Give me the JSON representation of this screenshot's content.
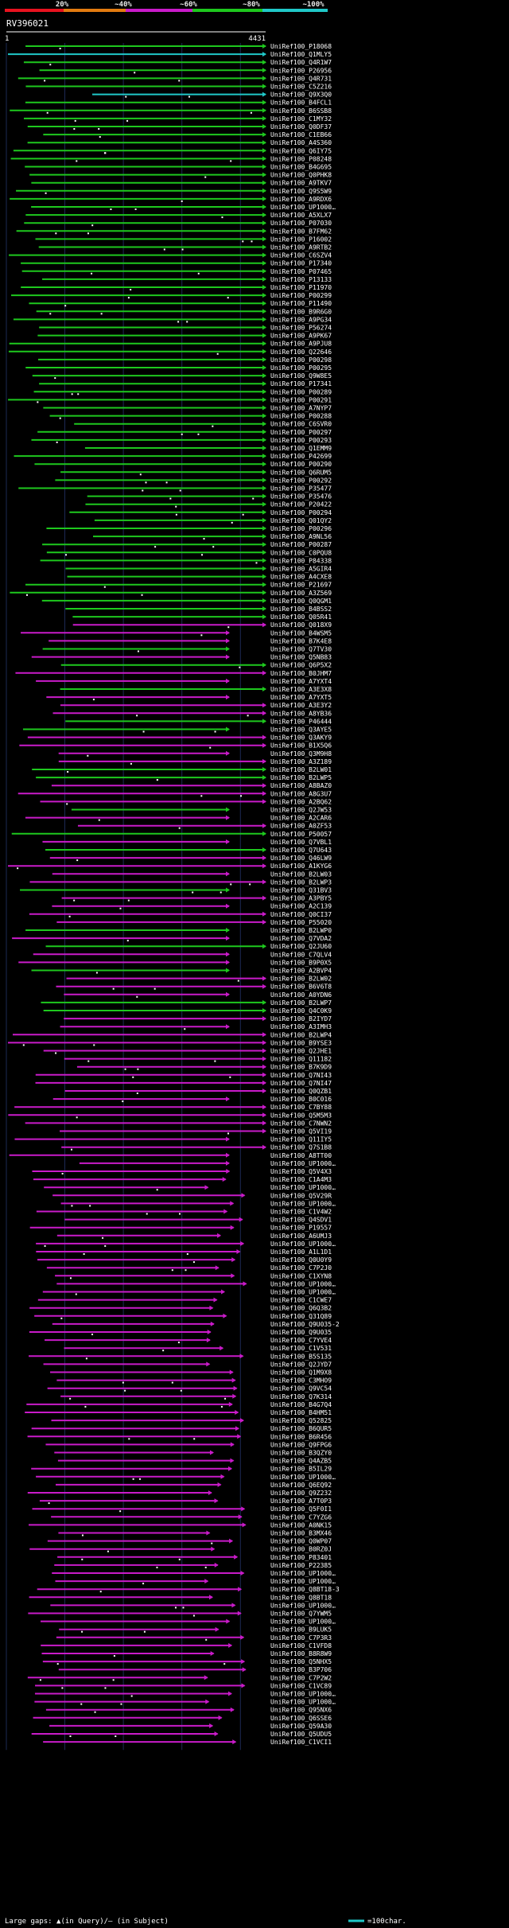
{
  "title": "RV396021",
  "legend_labels": [
    "20%",
    "~40%",
    "~60%",
    "~80%",
    "~100%"
  ],
  "legend_colors": [
    "#e8121f",
    "#e27b10",
    "#c91bc9",
    "#1ec81e",
    "#20c8c8"
  ],
  "footer": {
    "gap_note": "Large gaps: ▲(in Query)/— (in Subject)",
    "scale_note": "=100char."
  },
  "chart_data": {
    "type": "alignment",
    "query_id": "RV396021",
    "query_start": 1,
    "query_end": 4431,
    "axis_start_label": "1",
    "axis_end_label": "4431",
    "hits": [
      "UniRef100_P18068",
      "UniRef100_Q1MLY5",
      "UniRef100_Q4R1W7",
      "UniRef100_P26956",
      "UniRef100_Q4R731",
      "UniRef100_C5Z216",
      "UniRef100_Q9X3Q0",
      "UniRef100_B4FCL1",
      "UniRef100_B6SSB8",
      "UniRef100_C1MY32",
      "UniRef100_Q0DF37",
      "UniRef100_C1EB66",
      "UniRef100_A4S360",
      "UniRef100_Q6IY75",
      "UniRef100_P08248",
      "UniRef100_B4G695",
      "UniRef100_Q0PHK8",
      "UniRef100_A9TKV7",
      "UniRef100_Q9S5W9",
      "UniRef100_A9RDX6",
      "UniRef100_UP1000…",
      "UniRef100_A5XLX7",
      "UniRef100_P07030",
      "UniRef100_B7FM62",
      "UniRef100_P16002",
      "UniRef100_A9RTB2",
      "UniRef100_C6SZV4",
      "UniRef100_P17340",
      "UniRef100_P07465",
      "UniRef100_P13133",
      "UniRef100_P11970",
      "UniRef100_P00299",
      "UniRef100_P11490",
      "UniRef100_B9R6G0",
      "UniRef100_A9PG34",
      "UniRef100_P56274",
      "UniRef100_A9PK67",
      "UniRef100_A9PJU8",
      "UniRef100_Q22646",
      "UniRef100_P00298",
      "UniRef100_P00295",
      "UniRef100_Q9W8E5",
      "UniRef100_P17341",
      "UniRef100_P00289",
      "UniRef100_P00291",
      "UniRef100_A7NYP7",
      "UniRef100_P00288",
      "UniRef100_C6SVR0",
      "UniRef100_P00297",
      "UniRef100_P00293",
      "UniRef100_Q1EMM9",
      "UniRef100_P42699",
      "UniRef100_P00290",
      "UniRef100_Q6RUM5",
      "UniRef100_P00292",
      "UniRef100_P35477",
      "UniRef100_P35476",
      "UniRef100_P20422",
      "UniRef100_P00294",
      "UniRef100_Q01QY2",
      "UniRef100_P00296",
      "UniRef100_A9NL56",
      "UniRef100_P00287",
      "UniRef100_C0PQU8",
      "UniRef100_P84338",
      "UniRef100_A5GIR4",
      "UniRef100_A4CXE8",
      "UniRef100_P21697",
      "UniRef100_A3Z569",
      "UniRef100_Q0QGM1",
      "UniRef100_B4BSS2",
      "UniRef100_Q05R41",
      "UniRef100_Q018X9",
      "UniRef100_B4WSM5",
      "UniRef100_B7K4E8",
      "UniRef100_Q7TV30",
      "UniRef100_Q5NB83",
      "UniRef100_Q6P5X2",
      "UniRef100_B0JHM7",
      "UniRef100_A7YXT4",
      "UniRef100_A3E3X8",
      "UniRef100_A7YXT5",
      "UniRef100_A3E3Y2",
      "UniRef100_A8YB36",
      "UniRef100_P46444",
      "UniRef100_Q3AYE5",
      "UniRef100_Q3AKY9",
      "UniRef100_B1X5Q6",
      "UniRef100_Q3M9H8",
      "UniRef100_A3Z189",
      "UniRef100_B2LW01",
      "UniRef100_B2LWP5",
      "UniRef100_A8BAZ0",
      "UniRef100_A8G3U7",
      "UniRef100_A2BQ62",
      "UniRef100_Q2JW53",
      "UniRef100_A2CAR6",
      "UniRef100_A0ZF53",
      "UniRef100_P50057",
      "UniRef100_Q7VBL1",
      "UniRef100_Q7U643",
      "UniRef100_Q46LW9",
      "UniRef100_A1KYG6",
      "UniRef100_B2LW03",
      "UniRef100_B2LWP3",
      "UniRef100_Q31BV3",
      "UniRef100_A3PBY5",
      "UniRef100_A2C139",
      "UniRef100_Q0CI37",
      "UniRef100_P55020",
      "UniRef100_B2LWP0",
      "UniRef100_Q7VDA2",
      "UniRef100_Q2JU60",
      "UniRef100_C7QLV4",
      "UniRef100_B9P0X5",
      "UniRef100_A2BVP4",
      "UniRef100_B2LW02",
      "UniRef100_B6V6T8",
      "UniRef100_A0YDN6",
      "UniRef100_B2LWP7",
      "UniRef100_Q4C0K9",
      "UniRef100_B2IYD7",
      "UniRef100_A3IMH3",
      "UniRef100_B2LWP4",
      "UniRef100_B9YSE3",
      "UniRef100_Q2JHE1",
      "UniRef100_Q11182",
      "UniRef100_B7K9D9",
      "UniRef100_Q7NI43",
      "UniRef100_Q7NI47",
      "UniRef100_Q0QZB1",
      "UniRef100_B0C016",
      "UniRef100_C7BY88",
      "UniRef100_Q5M5M3",
      "UniRef100_C7NWN2",
      "UniRef100_Q5VI19",
      "UniRef100_Q11IY5",
      "UniRef100_Q7S1B8",
      "UniRef100_A8TT00",
      "UniRef100_UP1000…",
      "UniRef100_Q5V4X3",
      "UniRef100_C1A4M3",
      "UniRef100_UP1000…",
      "UniRef100_Q5V29R",
      "UniRef100_UP1000…",
      "UniRef100_C1V4W2",
      "UniRef100_Q4SDV1",
      "UniRef100_P19557",
      "UniRef100_A6UMJ3",
      "UniRef100_UP1000…",
      "UniRef100_A1L1D1",
      "UniRef100_Q0U0Y9",
      "UniRef100_C7P2J0",
      "UniRef100_C1XYN8",
      "UniRef100_UP1000…",
      "UniRef100_UP1000…",
      "UniRef100_C1CWE7",
      "UniRef100_Q6Q3B2",
      "UniRef100_Q31Q89",
      "UniRef100_Q9U035-2",
      "UniRef100_Q9U035",
      "UniRef100_C7YVE4",
      "UniRef100_C1V531",
      "UniRef100_B5S135",
      "UniRef100_Q2JYD7",
      "UniRef100_Q1M9X8",
      "UniRef100_C3MHO9",
      "UniRef100_Q9VC54",
      "UniRef100_Q7K314",
      "UniRef100_B4G7Q4",
      "UniRef100_B4HM51",
      "UniRef100_Q52825",
      "UniRef100_B6QUR5",
      "UniRef100_B6R456",
      "UniRef100_Q9FPG6",
      "UniRef100_B3QZY0",
      "UniRef100_Q4AZB5",
      "UniRef100_B5IL29",
      "UniRef100_UP1000…",
      "UniRef100_Q6EQ92",
      "UniRef100_Q9Z232",
      "UniRef100_A7T0P3",
      "UniRef100_Q5F0I1",
      "UniRef100_C7YZG6",
      "UniRef100_A0NK15",
      "UniRef100_B3MX46",
      "UniRef100_Q0WP07",
      "UniRef100_B0RZ0J",
      "UniRef100_P83401",
      "UniRef100_P22385",
      "UniRef100_UP1000…",
      "UniRef100_UP1000…",
      "UniRef100_Q8BT18-3",
      "UniRef100_Q8BT18",
      "UniRef100_UP1000…",
      "UniRef100_Q7YWM5",
      "UniRef100_UP1000…",
      "UniRef100_B9LUK5",
      "UniRef100_C7P3R3",
      "UniRef100_C1VFD8",
      "UniRef100_B8R8W9",
      "UniRef100_Q5NHX5",
      "UniRef100_B3P706",
      "UniRef100_C7P2W2",
      "UniRef100_C1VC89",
      "UniRef100_UP1000…",
      "UniRef100_UP1000…",
      "UniRef100_Q95NX6",
      "UniRef100_Q6SSE6",
      "UniRef100_Q59A30",
      "UniRef100_Q5UDU5",
      "UniRef100_C1VCI1"
    ]
  }
}
